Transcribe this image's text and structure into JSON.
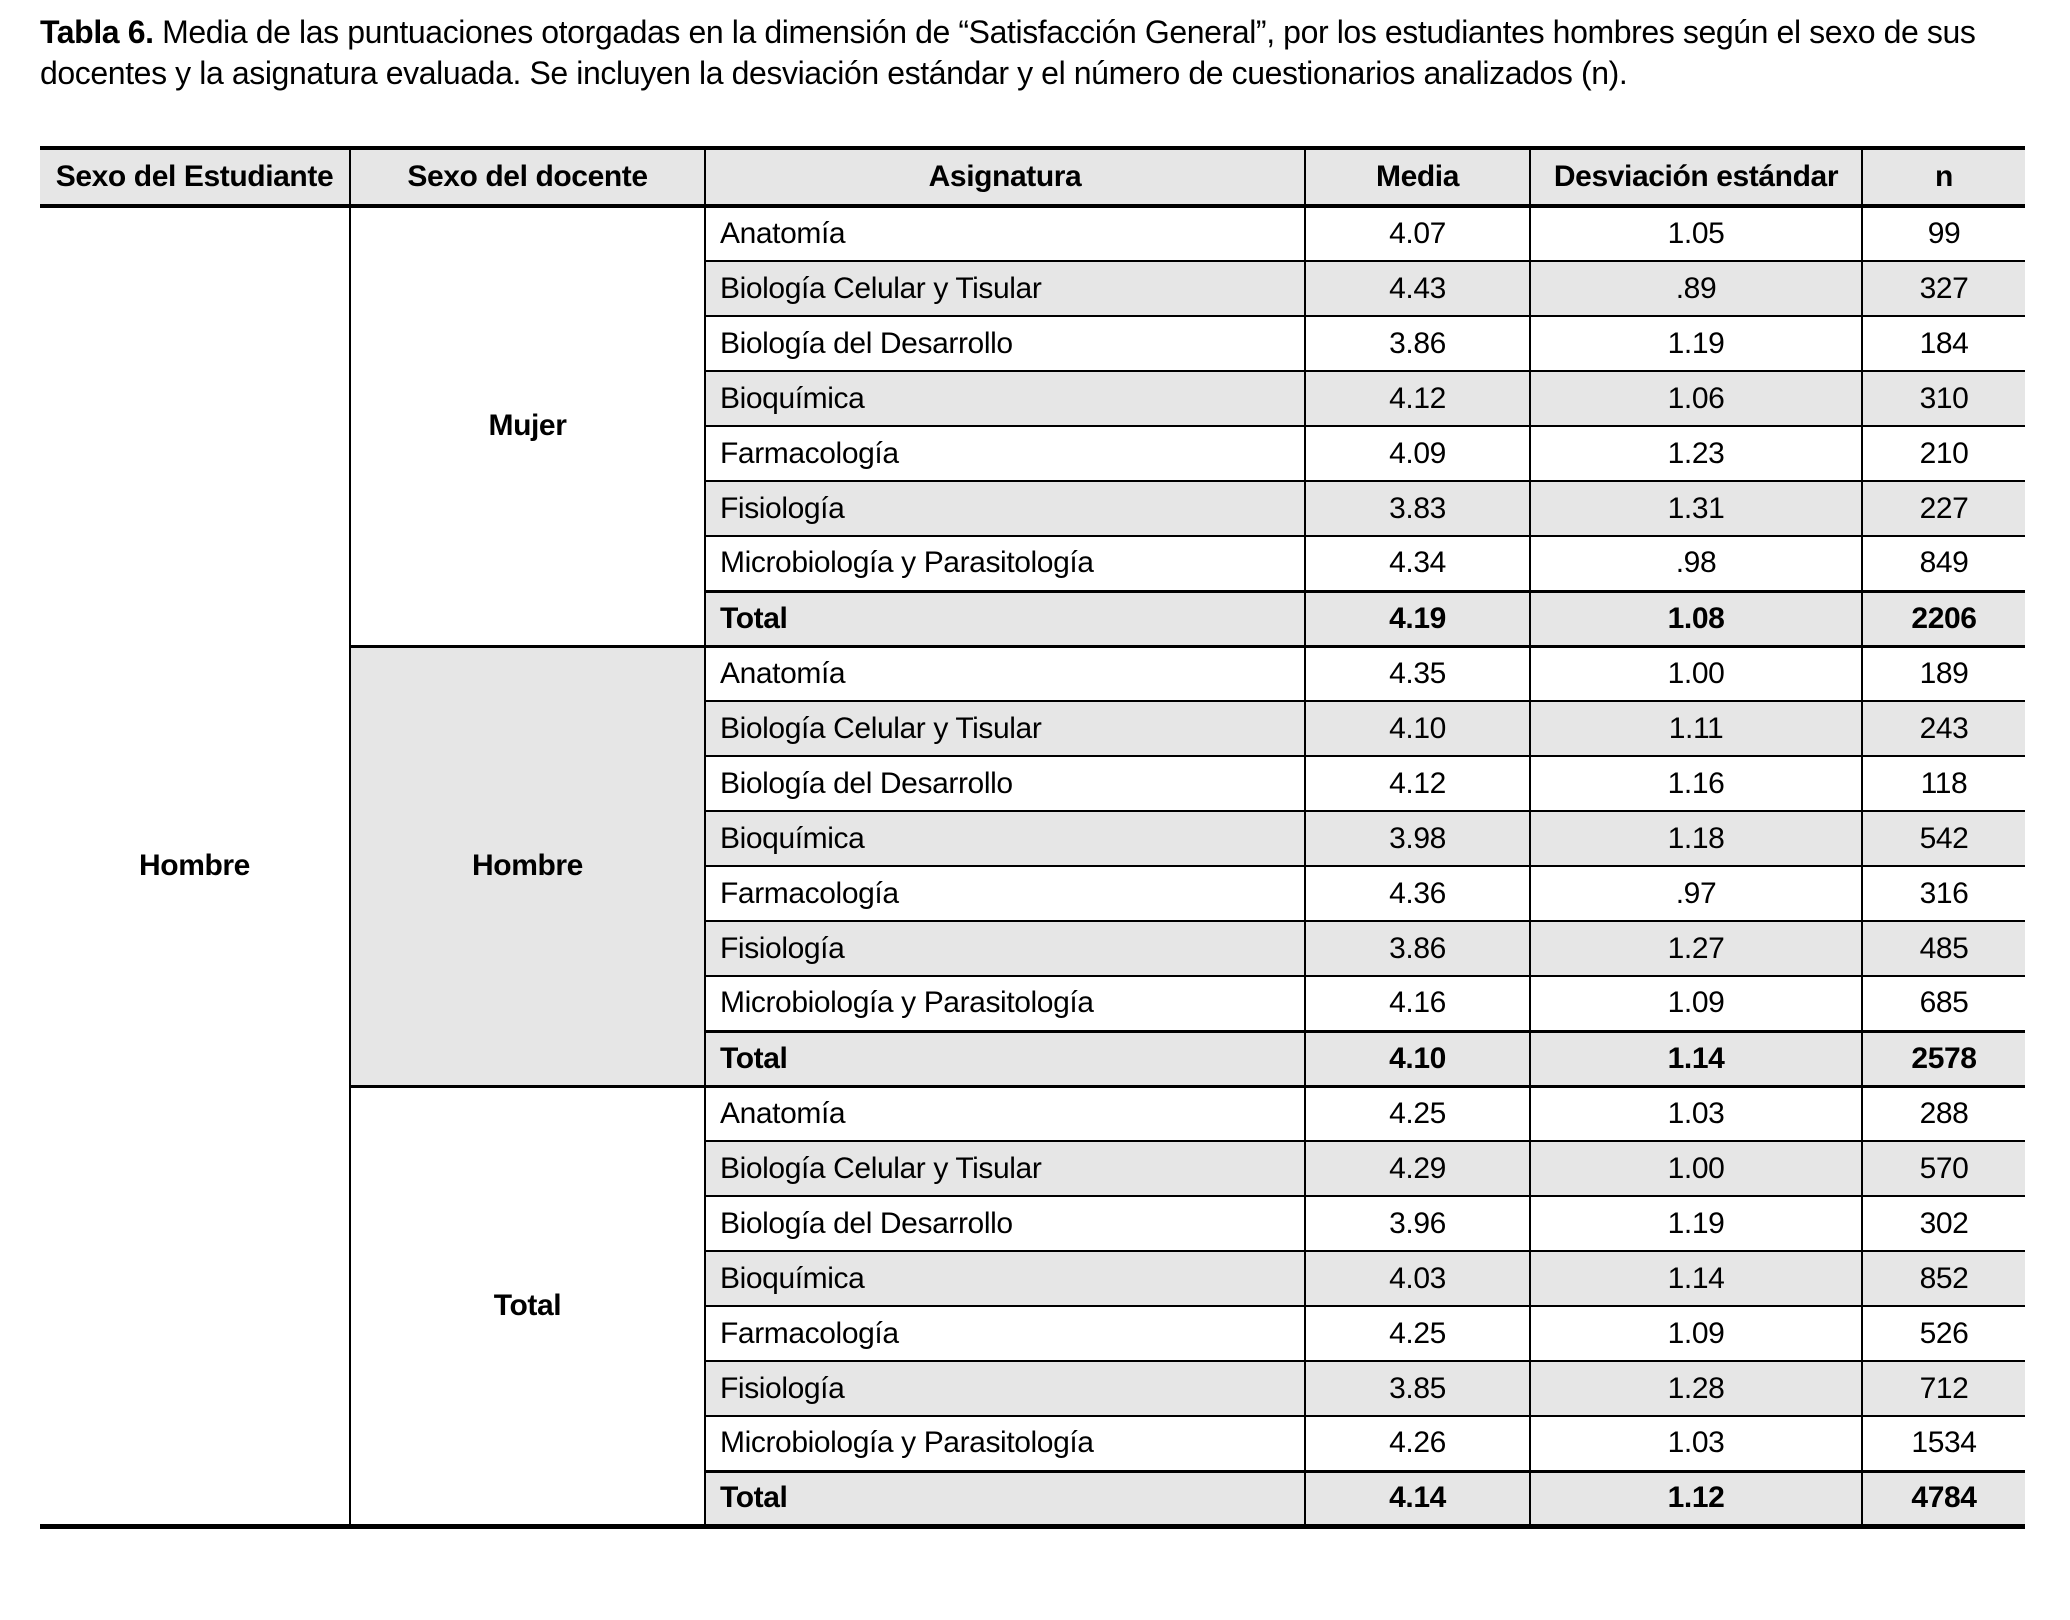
{
  "caption": {
    "label": "Tabla 6.",
    "text": " Media de las puntuaciones otorgadas en la dimensión de “Satisfacción General”, por los estudiantes hombres según el sexo de sus docentes y la asignatura evaluada. Se incluyen la desviación estándar y el número de cuestionarios analizados (n)."
  },
  "table": {
    "columns": [
      "Sexo del Estudiante",
      "Sexo del docente",
      "Asignatura",
      "Media",
      "Desviación estándar",
      "n"
    ],
    "student_sex": "Hombre",
    "colors": {
      "band": "#e6e6e6",
      "rule": "#000000"
    },
    "groups": [
      {
        "teacher_sex": "Mujer",
        "highlighted": false,
        "rows": [
          {
            "asignatura": "Anatomía",
            "media": "4.07",
            "sd": "1.05",
            "n": "99",
            "total": false
          },
          {
            "asignatura": "Biología Celular y Tisular",
            "media": "4.43",
            "sd": ".89",
            "n": "327",
            "total": false
          },
          {
            "asignatura": "Biología del Desarrollo",
            "media": "3.86",
            "sd": "1.19",
            "n": "184",
            "total": false
          },
          {
            "asignatura": "Bioquímica",
            "media": "4.12",
            "sd": "1.06",
            "n": "310",
            "total": false
          },
          {
            "asignatura": "Farmacología",
            "media": "4.09",
            "sd": "1.23",
            "n": "210",
            "total": false
          },
          {
            "asignatura": "Fisiología",
            "media": "3.83",
            "sd": "1.31",
            "n": "227",
            "total": false
          },
          {
            "asignatura": "Microbiología y Parasitología",
            "media": "4.34",
            "sd": ".98",
            "n": "849",
            "total": false
          },
          {
            "asignatura": "Total",
            "media": "4.19",
            "sd": "1.08",
            "n": "2206",
            "total": true
          }
        ]
      },
      {
        "teacher_sex": "Hombre",
        "highlighted": true,
        "rows": [
          {
            "asignatura": "Anatomía",
            "media": "4.35",
            "sd": "1.00",
            "n": "189",
            "total": false
          },
          {
            "asignatura": "Biología Celular y Tisular",
            "media": "4.10",
            "sd": "1.11",
            "n": "243",
            "total": false
          },
          {
            "asignatura": "Biología del Desarrollo",
            "media": "4.12",
            "sd": "1.16",
            "n": "118",
            "total": false
          },
          {
            "asignatura": "Bioquímica",
            "media": "3.98",
            "sd": "1.18",
            "n": "542",
            "total": false
          },
          {
            "asignatura": "Farmacología",
            "media": "4.36",
            "sd": ".97",
            "n": "316",
            "total": false
          },
          {
            "asignatura": "Fisiología",
            "media": "3.86",
            "sd": "1.27",
            "n": "485",
            "total": false
          },
          {
            "asignatura": "Microbiología y Parasitología",
            "media": "4.16",
            "sd": "1.09",
            "n": "685",
            "total": false
          },
          {
            "asignatura": "Total",
            "media": "4.10",
            "sd": "1.14",
            "n": "2578",
            "total": true
          }
        ]
      },
      {
        "teacher_sex": "Total",
        "highlighted": false,
        "rows": [
          {
            "asignatura": "Anatomía",
            "media": "4.25",
            "sd": "1.03",
            "n": "288",
            "total": false
          },
          {
            "asignatura": "Biología Celular y Tisular",
            "media": "4.29",
            "sd": "1.00",
            "n": "570",
            "total": false
          },
          {
            "asignatura": "Biología del Desarrollo",
            "media": "3.96",
            "sd": "1.19",
            "n": "302",
            "total": false
          },
          {
            "asignatura": "Bioquímica",
            "media": "4.03",
            "sd": "1.14",
            "n": "852",
            "total": false
          },
          {
            "asignatura": "Farmacología",
            "media": "4.25",
            "sd": "1.09",
            "n": "526",
            "total": false
          },
          {
            "asignatura": "Fisiología",
            "media": "3.85",
            "sd": "1.28",
            "n": "712",
            "total": false
          },
          {
            "asignatura": "Microbiología y Parasitología",
            "media": "4.26",
            "sd": "1.03",
            "n": "1534",
            "total": false
          },
          {
            "asignatura": "Total",
            "media": "4.14",
            "sd": "1.12",
            "n": "4784",
            "total": true
          }
        ]
      }
    ]
  }
}
